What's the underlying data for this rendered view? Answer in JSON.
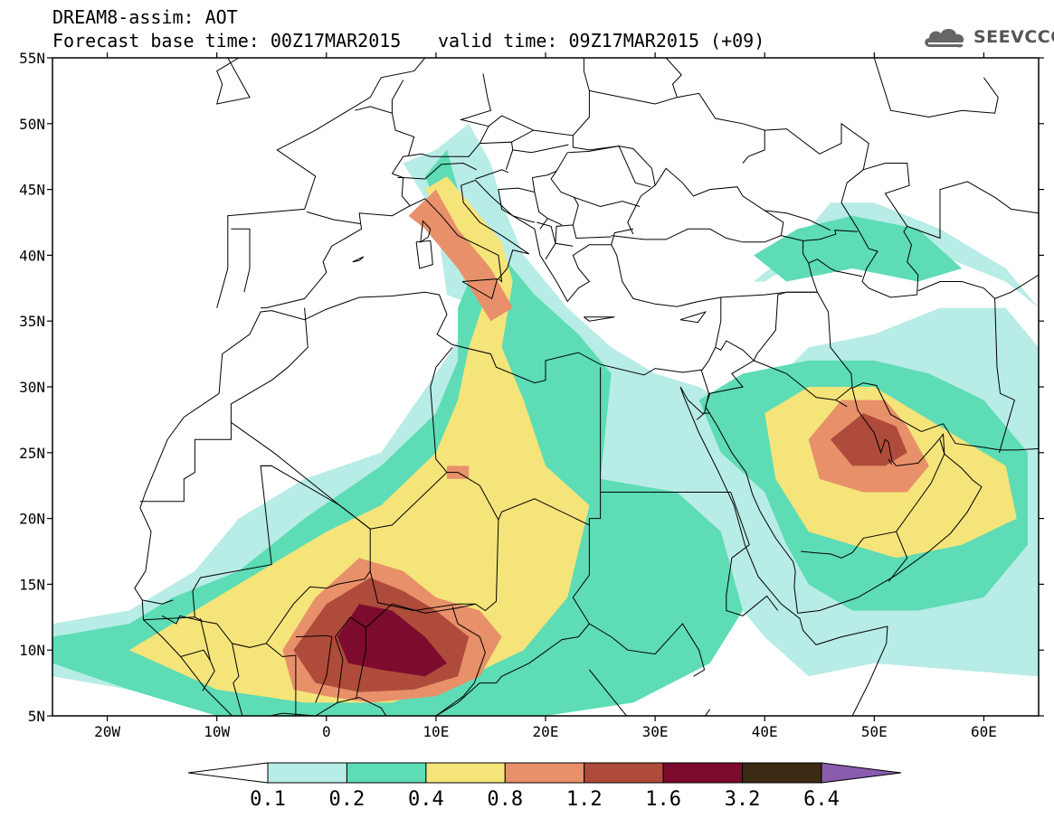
{
  "header": {
    "title": "DREAM8-assim: AOT",
    "base_time": "Forecast base time: 00Z17MAR2015",
    "valid_time": "valid time: 09Z17MAR2015 (+09)",
    "logo_text": "SEEVCCC",
    "logo_icon": "cloud-icon"
  },
  "map": {
    "lon_range": [
      -25,
      65
    ],
    "lat_range": [
      5,
      55
    ],
    "lat_labels": [
      {
        "lat": 55,
        "label": "55N"
      },
      {
        "lat": 50,
        "label": "50N"
      },
      {
        "lat": 45,
        "label": "45N"
      },
      {
        "lat": 40,
        "label": "40N"
      },
      {
        "lat": 35,
        "label": "35N"
      },
      {
        "lat": 30,
        "label": "30N"
      },
      {
        "lat": 25,
        "label": "25N"
      },
      {
        "lat": 20,
        "label": "20N"
      },
      {
        "lat": 15,
        "label": "15N"
      },
      {
        "lat": 10,
        "label": "10N"
      },
      {
        "lat": 5,
        "label": "5N"
      }
    ],
    "lon_labels": [
      {
        "lon": -20,
        "label": "20W"
      },
      {
        "lon": -10,
        "label": "10W"
      },
      {
        "lon": 0,
        "label": "0"
      },
      {
        "lon": 10,
        "label": "10E"
      },
      {
        "lon": 20,
        "label": "20E"
      },
      {
        "lon": 30,
        "label": "30E"
      },
      {
        "lon": 40,
        "label": "40E"
      },
      {
        "lon": 50,
        "label": "50E"
      },
      {
        "lon": 60,
        "label": "60E"
      }
    ],
    "dust_fields": [
      {
        "level": 0,
        "color": "#b8ece6",
        "polys": [
          [
            [
              -25,
              12
            ],
            [
              -18,
              13
            ],
            [
              -12,
              16
            ],
            [
              -8,
              20
            ],
            [
              -2,
              23
            ],
            [
              5,
              25
            ],
            [
              10,
              31
            ],
            [
              14,
              36
            ],
            [
              11,
              37
            ],
            [
              10,
              43
            ],
            [
              7,
              47
            ],
            [
              10,
              48
            ],
            [
              13,
              50
            ],
            [
              15,
              47
            ],
            [
              16,
              44
            ],
            [
              18,
              40
            ],
            [
              22,
              36
            ],
            [
              26,
              33
            ],
            [
              30,
              31
            ],
            [
              34,
              30
            ],
            [
              38,
              28
            ],
            [
              44,
              33
            ],
            [
              50,
              34
            ],
            [
              56,
              36
            ],
            [
              62,
              36
            ],
            [
              65,
              33
            ],
            [
              65,
              8
            ],
            [
              50,
              9
            ],
            [
              44,
              8
            ],
            [
              40,
              11
            ],
            [
              36,
              15
            ],
            [
              32,
              11
            ],
            [
              28,
              7
            ],
            [
              20,
              5
            ],
            [
              -10,
              5
            ],
            [
              -18,
              7
            ],
            [
              -25,
              8
            ]
          ],
          [
            [
              39,
              38
            ],
            [
              42,
              40
            ],
            [
              46,
              44
            ],
            [
              50,
              44
            ],
            [
              56,
              42
            ],
            [
              62,
              39
            ],
            [
              65,
              36
            ],
            [
              62,
              38
            ],
            [
              56,
              40
            ],
            [
              50,
              41
            ],
            [
              44,
              40
            ],
            [
              40,
              38
            ]
          ]
        ]
      },
      {
        "level": 1,
        "color": "#5ddcb5",
        "polys": [
          [
            [
              -25,
              11
            ],
            [
              -18,
              12
            ],
            [
              -14,
              14
            ],
            [
              -8,
              16
            ],
            [
              -2,
              20
            ],
            [
              5,
              24
            ],
            [
              10,
              28
            ],
            [
              12,
              32
            ],
            [
              12,
              36
            ],
            [
              14,
              40
            ],
            [
              11,
              42
            ],
            [
              9,
              46
            ],
            [
              11,
              48
            ],
            [
              12,
              45
            ],
            [
              15,
              41
            ],
            [
              19,
              37
            ],
            [
              23,
              34
            ],
            [
              26,
              31
            ],
            [
              25,
              23
            ],
            [
              32,
              22
            ],
            [
              36,
              19
            ],
            [
              38,
              13
            ],
            [
              35,
              9
            ],
            [
              28,
              6
            ],
            [
              20,
              5
            ],
            [
              -10,
              5
            ],
            [
              -18,
              7
            ],
            [
              -25,
              9
            ]
          ],
          [
            [
              34,
              29
            ],
            [
              38,
              31
            ],
            [
              44,
              32
            ],
            [
              50,
              32
            ],
            [
              55,
              31
            ],
            [
              60,
              29
            ],
            [
              64,
              25
            ],
            [
              64,
              18
            ],
            [
              60,
              14
            ],
            [
              54,
              13
            ],
            [
              48,
              13
            ],
            [
              44,
              15
            ],
            [
              42,
              18
            ],
            [
              40,
              22
            ],
            [
              36,
              25
            ]
          ],
          [
            [
              39,
              40
            ],
            [
              43,
              42
            ],
            [
              48,
              43
            ],
            [
              54,
              42
            ],
            [
              58,
              39
            ],
            [
              54,
              38
            ],
            [
              48,
              39
            ],
            [
              42,
              38
            ]
          ]
        ]
      },
      {
        "level": 2,
        "color": "#f5e47a",
        "polys": [
          [
            [
              -18,
              10
            ],
            [
              -12,
              13
            ],
            [
              -6,
              16
            ],
            [
              0,
              19
            ],
            [
              5,
              21
            ],
            [
              10,
              25
            ],
            [
              12,
              29
            ],
            [
              13,
              33
            ],
            [
              15,
              38
            ],
            [
              12,
              42
            ],
            [
              9,
              45
            ],
            [
              11,
              46
            ],
            [
              13,
              44
            ],
            [
              16,
              41
            ],
            [
              17,
              38
            ],
            [
              16,
              33
            ],
            [
              18,
              29
            ],
            [
              20,
              24
            ],
            [
              24,
              21
            ],
            [
              22,
              14
            ],
            [
              18,
              10
            ],
            [
              13,
              8
            ],
            [
              6,
              6
            ],
            [
              -2,
              6
            ],
            [
              -10,
              7
            ]
          ],
          [
            [
              40,
              28
            ],
            [
              44,
              30
            ],
            [
              50,
              30
            ],
            [
              54,
              28
            ],
            [
              58,
              26
            ],
            [
              62,
              24
            ],
            [
              63,
              20
            ],
            [
              58,
              18
            ],
            [
              52,
              17
            ],
            [
              48,
              18
            ],
            [
              44,
              19
            ],
            [
              41,
              23
            ]
          ]
        ]
      },
      {
        "level": 3,
        "color": "#e8906a",
        "polys": [
          [
            [
              -4,
              10
            ],
            [
              -1,
              14
            ],
            [
              3,
              17
            ],
            [
              7,
              16
            ],
            [
              10,
              14
            ],
            [
              14,
              13
            ],
            [
              16,
              11
            ],
            [
              14,
              8
            ],
            [
              10,
              6.5
            ],
            [
              4,
              6
            ],
            [
              0,
              6.5
            ],
            [
              -3,
              7
            ]
          ],
          [
            [
              7.5,
              43
            ],
            [
              10,
              45
            ],
            [
              12,
              42
            ],
            [
              15,
              39
            ],
            [
              17,
              36
            ],
            [
              15,
              35
            ],
            [
              12,
              39
            ],
            [
              9,
              42
            ]
          ],
          [
            [
              44,
              26
            ],
            [
              47,
              29
            ],
            [
              51,
              29
            ],
            [
              53,
              27
            ],
            [
              55,
              24
            ],
            [
              53,
              22
            ],
            [
              49,
              22
            ],
            [
              45,
              23
            ]
          ],
          [
            [
              11,
              24
            ],
            [
              13,
              24
            ],
            [
              13,
              23
            ],
            [
              11,
              23
            ]
          ]
        ]
      },
      {
        "level": 4,
        "color": "#ae4b3a",
        "polys": [
          [
            [
              -3,
              10
            ],
            [
              0,
              13.5
            ],
            [
              4,
              15.5
            ],
            [
              7,
              14.5
            ],
            [
              10,
              13
            ],
            [
              13,
              11
            ],
            [
              12,
              8
            ],
            [
              8,
              7
            ],
            [
              3,
              6.8
            ],
            [
              -1,
              7.5
            ]
          ],
          [
            [
              46,
              26
            ],
            [
              49,
              28
            ],
            [
              52,
              27
            ],
            [
              53,
              25
            ],
            [
              51,
              24
            ],
            [
              48,
              24
            ]
          ]
        ]
      },
      {
        "level": 5,
        "color": "#7d0b2e",
        "polys": [
          [
            [
              1,
              11
            ],
            [
              3,
              13.5
            ],
            [
              6,
              13
            ],
            [
              9,
              11
            ],
            [
              11,
              9
            ],
            [
              9,
              8
            ],
            [
              5,
              8.5
            ],
            [
              2,
              9
            ]
          ]
        ]
      }
    ]
  },
  "colorbar": {
    "colors": [
      "#ffffff",
      "#b8ece6",
      "#5ddcb5",
      "#f5e47a",
      "#e8906a",
      "#ae4b3a",
      "#7d0b2e",
      "#3c2a14",
      "#8a5cae"
    ],
    "labels": [
      "0.1",
      "0.2",
      "0.4",
      "0.8",
      "1.2",
      "1.6",
      "3.2",
      "6.4"
    ]
  }
}
